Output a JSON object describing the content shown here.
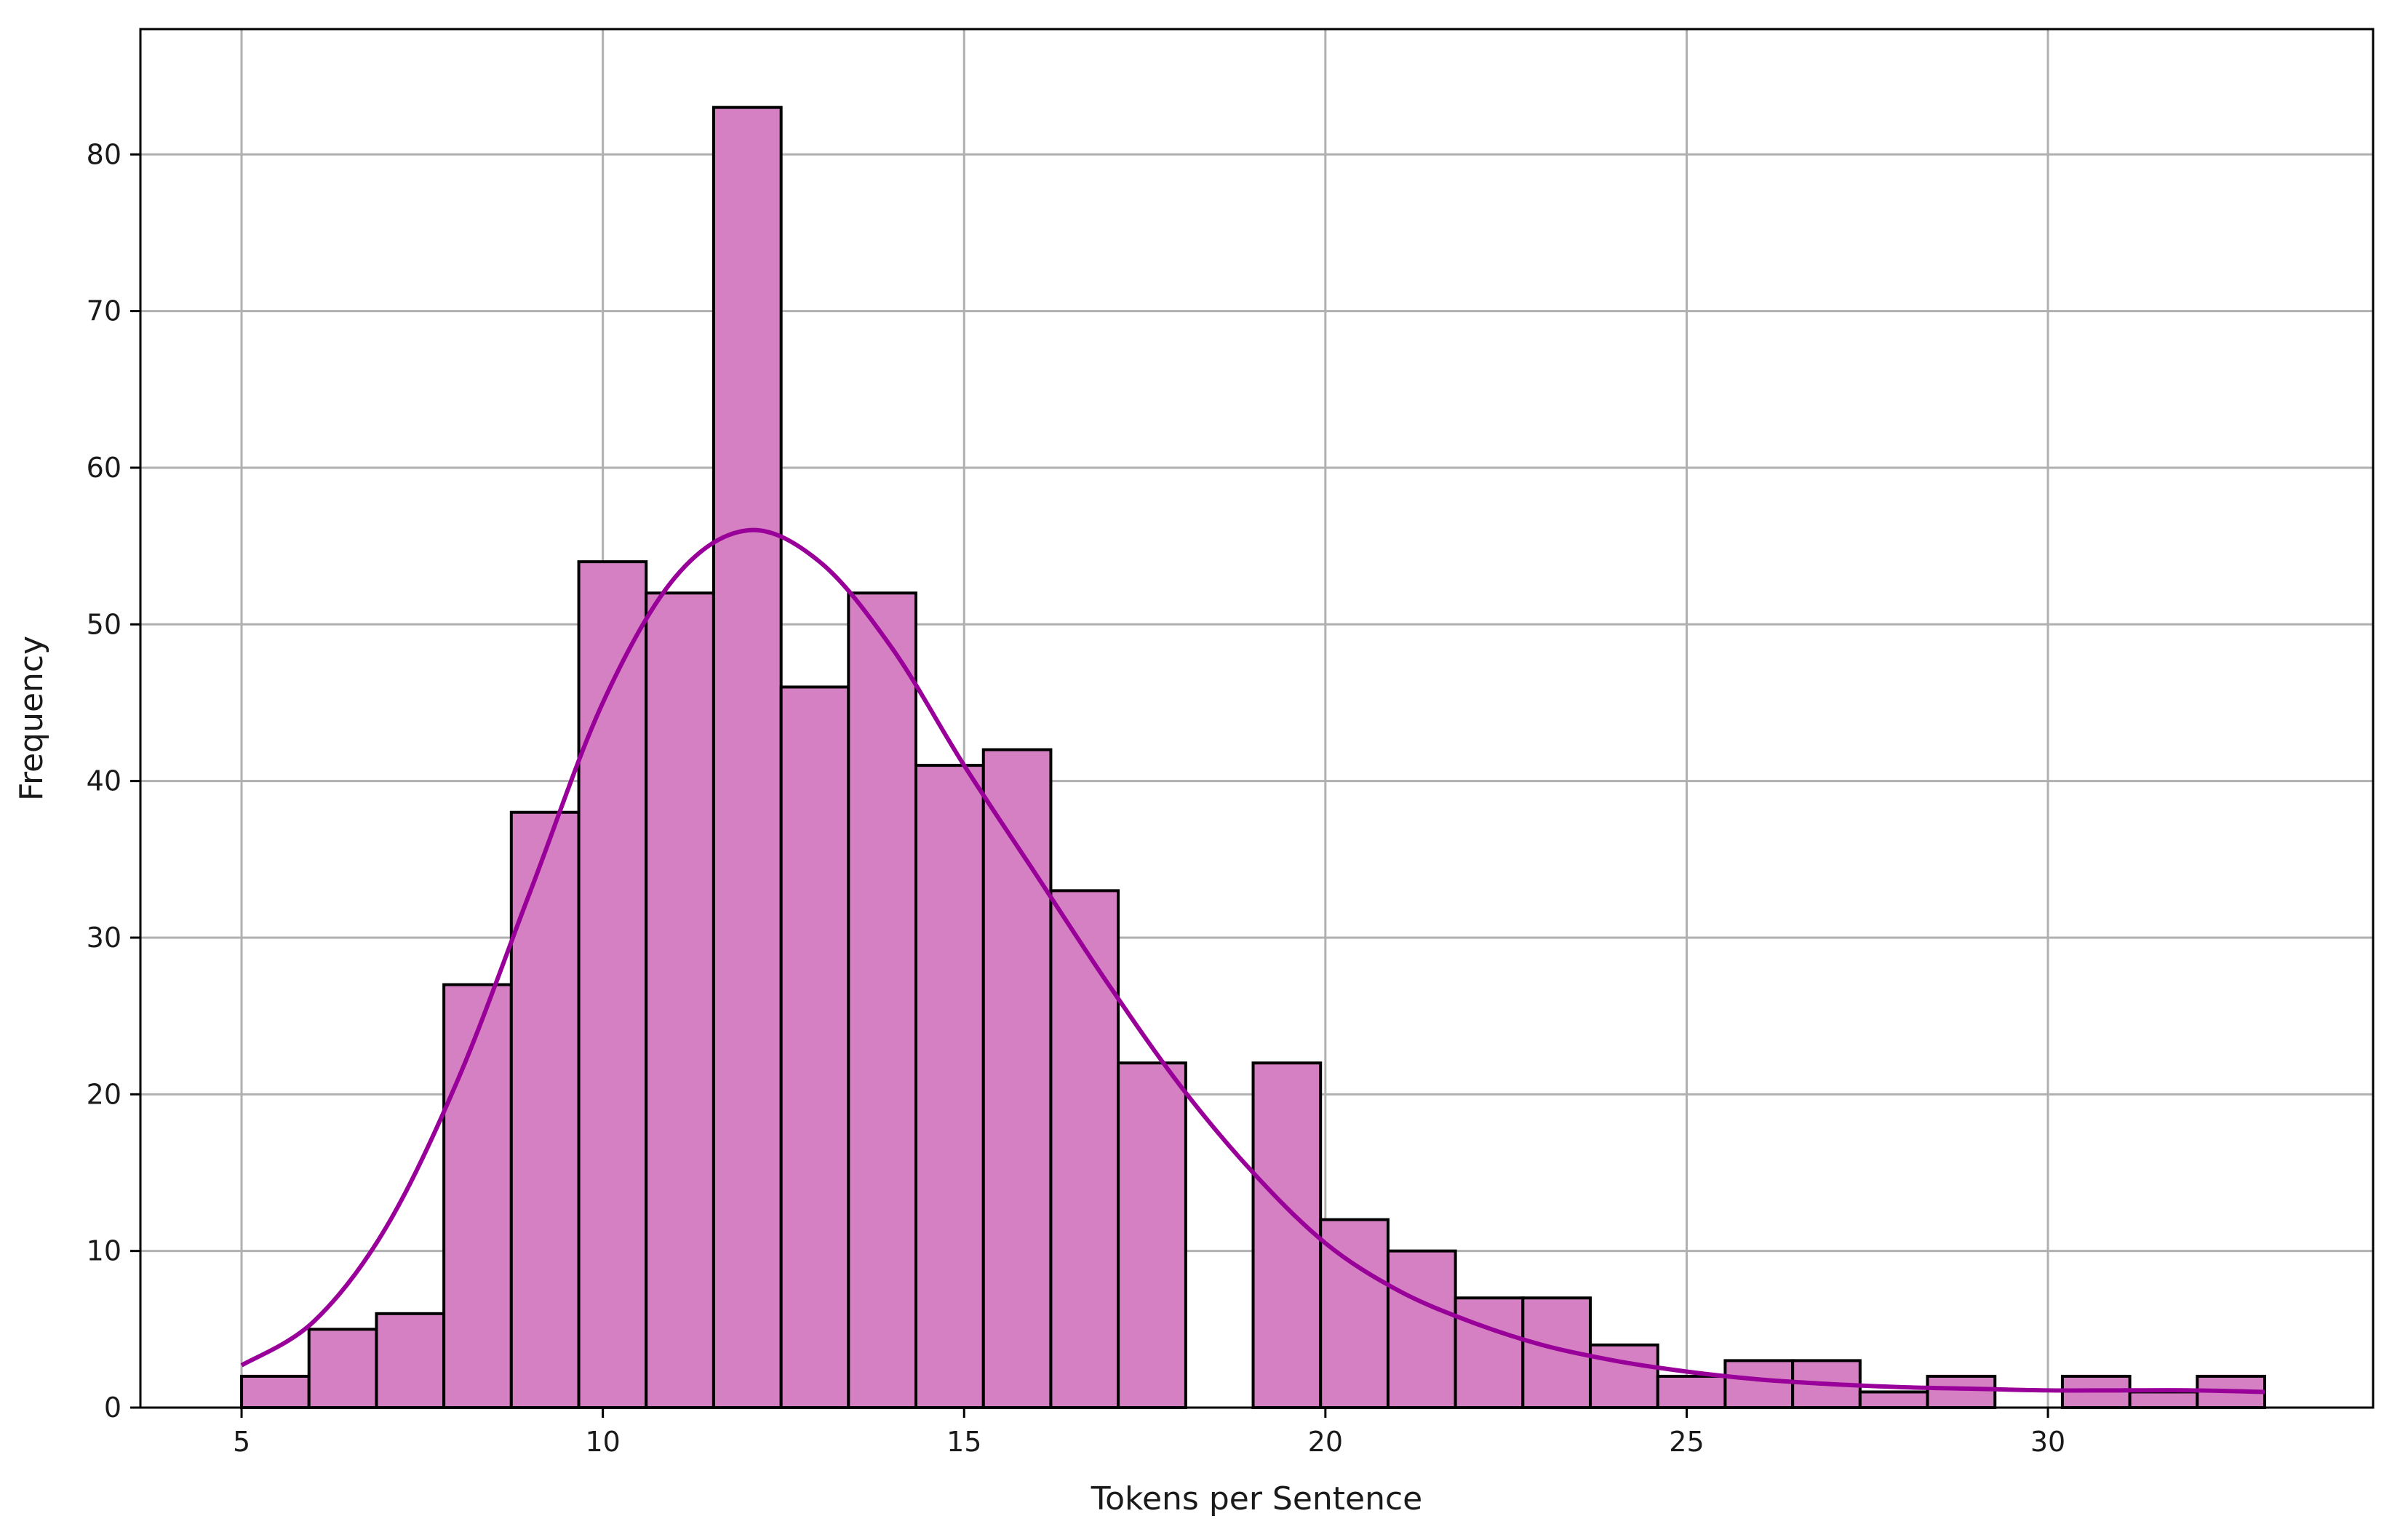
{
  "chart_data": {
    "type": "bar",
    "subtype": "histogram-with-kde",
    "title": "",
    "xlabel": "Tokens per Sentence",
    "ylabel": "Frequency",
    "xlim": [
      3.6,
      34.5
    ],
    "ylim": [
      0,
      88
    ],
    "xticks": [
      5,
      10,
      15,
      20,
      25,
      30
    ],
    "yticks": [
      0,
      10,
      20,
      30,
      40,
      50,
      60,
      70,
      80
    ],
    "grid": true,
    "bin_edges": [
      5.0,
      5.933,
      6.867,
      7.8,
      8.733,
      9.667,
      10.6,
      11.533,
      12.467,
      13.4,
      14.333,
      15.267,
      16.2,
      17.133,
      18.067,
      19.0,
      19.933,
      20.867,
      21.8,
      22.733,
      23.667,
      24.6,
      25.533,
      26.467,
      27.4,
      28.333,
      29.267,
      30.2,
      31.133,
      32.067,
      33.0
    ],
    "counts": [
      2,
      5,
      6,
      27,
      38,
      54,
      52,
      83,
      46,
      52,
      41,
      42,
      33,
      22,
      0,
      22,
      12,
      10,
      7,
      7,
      4,
      2,
      3,
      3,
      1,
      2,
      0,
      2,
      1,
      2
    ],
    "kde": {
      "x": [
        5,
        6,
        7,
        8,
        9,
        10,
        11,
        12,
        13,
        14,
        15,
        16,
        17,
        18,
        19,
        20,
        21,
        22,
        23,
        24,
        25,
        26,
        27,
        28,
        29,
        30,
        31,
        32,
        33
      ],
      "y": [
        2.7,
        5.5,
        11.5,
        21,
        33,
        45,
        53,
        56,
        54,
        48.5,
        41,
        34,
        27,
        20.5,
        15,
        10.5,
        7.5,
        5.5,
        4,
        3,
        2.3,
        1.8,
        1.5,
        1.3,
        1.2,
        1.1,
        1.1,
        1.1,
        1.0
      ]
    },
    "colors": {
      "bar_fill": "#d580c2",
      "bar_edge": "#000000",
      "kde_line": "#990099",
      "grid": "#b0b0b0"
    }
  }
}
